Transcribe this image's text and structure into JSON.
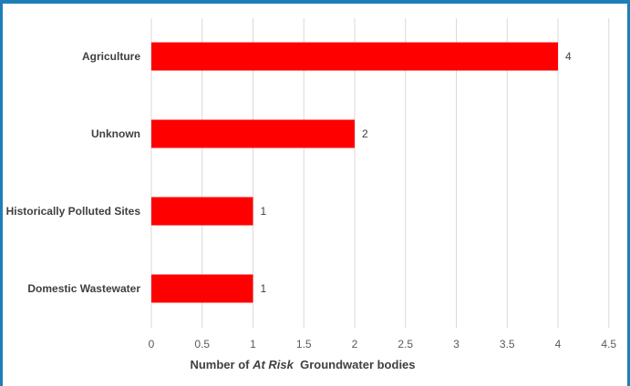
{
  "chart_data": {
    "type": "bar",
    "orientation": "horizontal",
    "categories": [
      "Agriculture",
      "Unknown",
      "Historically Polluted Sites",
      "Domestic Wastewater"
    ],
    "values": [
      4,
      2,
      1,
      1
    ],
    "xlabel_parts": [
      {
        "text": "Number of ",
        "italic": false
      },
      {
        "text": "At Risk",
        "italic": true
      },
      {
        "text": "  Groundwater bodies",
        "italic": false
      }
    ],
    "xlim": [
      0,
      4.5
    ],
    "xticks": [
      "0",
      "0.5",
      "1",
      "1.5",
      "2",
      "2.5",
      "3",
      "3.5",
      "4",
      "4.5"
    ],
    "grid": "vertical",
    "legend": "none",
    "bar_color": "#ff0000",
    "frame_color": "#1e7fb8"
  }
}
